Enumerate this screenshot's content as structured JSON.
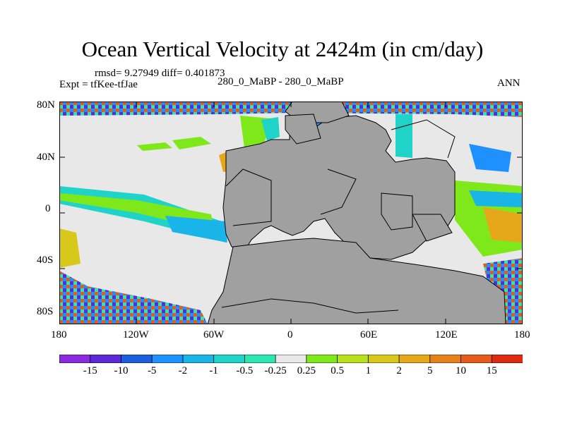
{
  "title": "Ocean Vertical Velocity at 2424m (in cm/day)",
  "stats": "rmsd= 9.27949 diff= 0.401873",
  "expt": "Expt = tfKee-tfJae",
  "subtitle": "280_0_MaBP - 280_0_MaBP",
  "season": "ANN",
  "lat_labels": [
    "80N",
    "40N",
    "0",
    "40S",
    "80S"
  ],
  "lon_labels": [
    "180",
    "120W",
    "60W",
    "0",
    "60E",
    "120E",
    "180"
  ],
  "colorbar": {
    "labels": [
      "-15",
      "-10",
      "-5",
      "-2",
      "-1",
      "-0.5",
      "-0.25",
      "0.25",
      "0.5",
      "1",
      "2",
      "5",
      "10",
      "15"
    ],
    "colors": [
      "#8a2be2",
      "#5a2ad8",
      "#1a5fe0",
      "#1e90ff",
      "#19b4e8",
      "#1fd3c8",
      "#2ee6b0",
      "#e8e8e8",
      "#7ee81a",
      "#b6e01a",
      "#d8c81a",
      "#e6a81a",
      "#e8801a",
      "#e85a1a",
      "#e02a10"
    ]
  },
  "colors": {
    "land": "#a0a0a0",
    "neutral_ocean": "#e8e8e8"
  }
}
